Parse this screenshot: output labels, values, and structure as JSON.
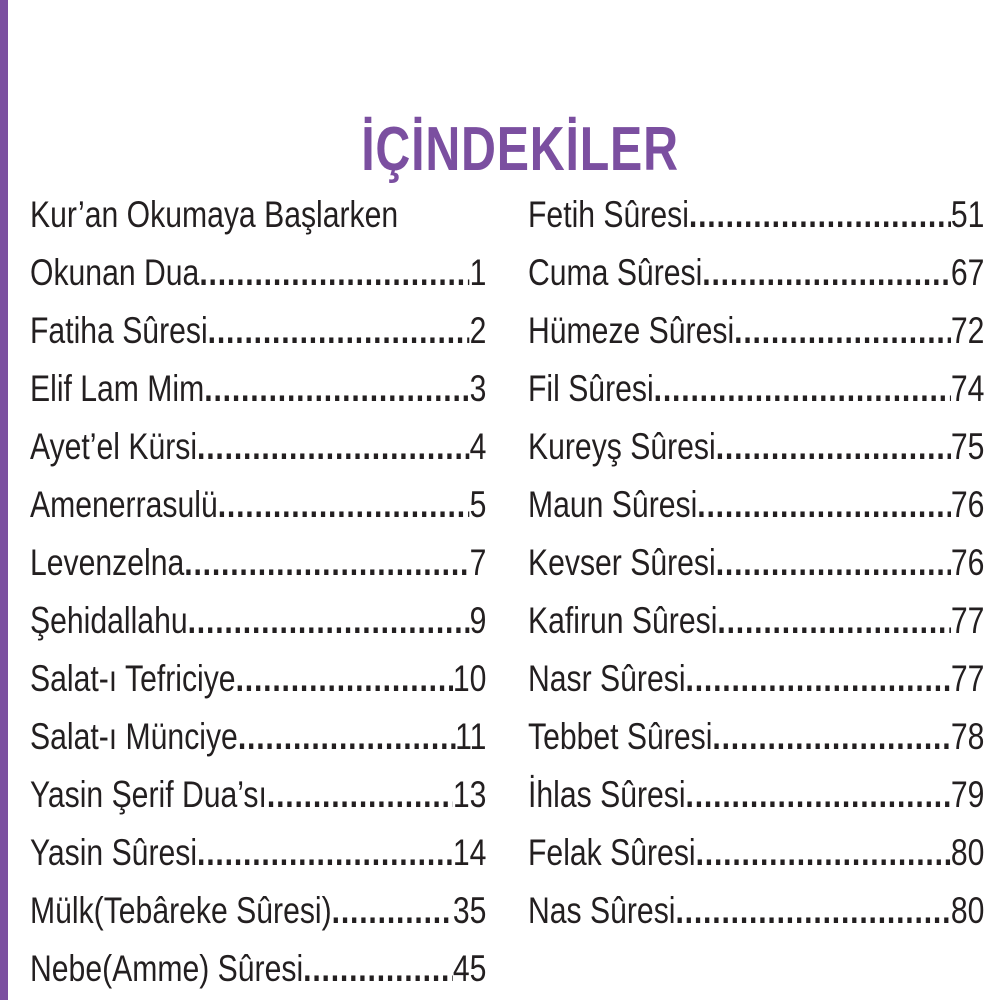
{
  "colors": {
    "accent": "#7b4fa0",
    "text": "#231f20"
  },
  "title": "İÇİNDEKİLER",
  "left_column": [
    {
      "name": "Kur’an Okumaya Başlarken",
      "page": ""
    },
    {
      "name": "Okunan Dua",
      "page": "1"
    },
    {
      "name": "Fatiha Sûresi",
      "page": "2"
    },
    {
      "name": "Elif Lam Mim",
      "page": "3"
    },
    {
      "name": "Ayet’el Kürsi",
      "page": "4"
    },
    {
      "name": "Amenerrasulü",
      "page": "5"
    },
    {
      "name": "Levenzelna",
      "page": "7"
    },
    {
      "name": "Şehidallahu",
      "page": "9"
    },
    {
      "name": "Salat-ı Tefriciye",
      "page": "10"
    },
    {
      "name": "Salat-ı Münciye",
      "page": "11"
    },
    {
      "name": "Yasin Şerif Dua’sı",
      "page": "13"
    },
    {
      "name": "Yasin Sûresi",
      "page": "14"
    },
    {
      "name": "Mülk(Tebâreke Sûresi)",
      "page": "35"
    },
    {
      "name": "Nebe(Amme) Sûresi",
      "page": "45"
    }
  ],
  "right_column": [
    {
      "name": "Fetih Sûresi",
      "page": "51"
    },
    {
      "name": "Cuma Sûresi",
      "page": "67"
    },
    {
      "name": "Hümeze Sûresi ",
      "page": "72"
    },
    {
      "name": "Fil Sûresi ",
      "page": "74"
    },
    {
      "name": "Kureyş Sûresi ",
      "page": "75"
    },
    {
      "name": "Maun Sûresi ",
      "page": "76"
    },
    {
      "name": "Kevser Sûresi ",
      "page": "76"
    },
    {
      "name": "Kafirun Sûresi ",
      "page": " 77"
    },
    {
      "name": "Nasr Sûresi ",
      "page": " 77"
    },
    {
      "name": "Tebbet Sûresi ",
      "page": "78"
    },
    {
      "name": "İhlas Sûresi ",
      "page": "79"
    },
    {
      "name": "Felak Sûresi",
      "page": "80"
    },
    {
      "name": "Nas Sûresi ",
      "page": "80"
    }
  ]
}
